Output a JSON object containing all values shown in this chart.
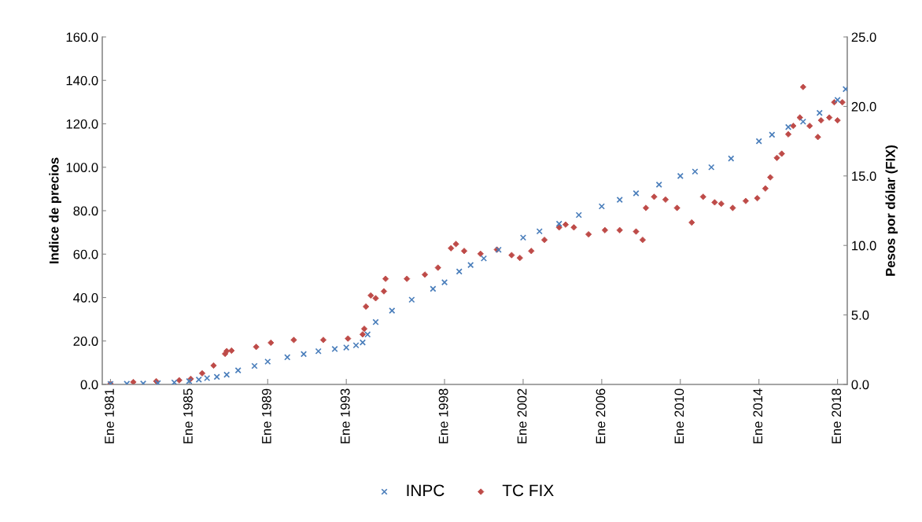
{
  "chart_data": {
    "type": "scatter",
    "ylabel": "Indice de precios",
    "y2label": "Pesos por dólar (FIX)",
    "xlim": [
      "1980-08",
      "2018-07"
    ],
    "xticks": [
      {
        "value": "1981-01",
        "label": "Ene 1981"
      },
      {
        "value": "1985-01",
        "label": "Ene 1985"
      },
      {
        "value": "1989-01",
        "label": "Ene 1989"
      },
      {
        "value": "1993-01",
        "label": "Ene 1993"
      },
      {
        "value": "1998-01",
        "label": "Ene 1998"
      },
      {
        "value": "2002-01",
        "label": "Ene 2002"
      },
      {
        "value": "2006-01",
        "label": "Ene 2006"
      },
      {
        "value": "2010-01",
        "label": "Ene 2010"
      },
      {
        "value": "2014-01",
        "label": "Ene 2014"
      },
      {
        "value": "2018-01",
        "label": "Ene 2018"
      }
    ],
    "ylim": [
      0,
      160
    ],
    "yticks": [
      {
        "value": 0,
        "label": "0.0"
      },
      {
        "value": 20,
        "label": "20.0"
      },
      {
        "value": 40,
        "label": "40.0"
      },
      {
        "value": 60,
        "label": "60.0"
      },
      {
        "value": 80,
        "label": "80.0"
      },
      {
        "value": 100,
        "label": "100.0"
      },
      {
        "value": 120,
        "label": "120.0"
      },
      {
        "value": 140,
        "label": "140.0"
      },
      {
        "value": 160,
        "label": "160.0"
      }
    ],
    "y2lim": [
      0,
      25
    ],
    "y2ticks": [
      {
        "value": 0,
        "label": "0.0"
      },
      {
        "value": 5,
        "label": "5.0"
      },
      {
        "value": 10,
        "label": "10.0"
      },
      {
        "value": 15,
        "label": "15.0"
      },
      {
        "value": 20,
        "label": "20.0"
      },
      {
        "value": 25,
        "label": "25.0"
      }
    ],
    "grid": false,
    "legend": "bottom",
    "series": [
      {
        "name": "INPC",
        "color": "#4a7ebb",
        "marker": "cross",
        "x": [
          "1981-01",
          "1981-11",
          "1982-09",
          "1983-06",
          "1984-04",
          "1985-01",
          "1985-07",
          "1985-12",
          "1986-06",
          "1986-12",
          "1987-07",
          "1988-05",
          "1989-01",
          "1990-01",
          "1990-11",
          "1991-08",
          "1992-06",
          "1993-01",
          "1993-07",
          "1993-11",
          "1994-02",
          "1994-07",
          "1995-05",
          "1996-05",
          "1997-06",
          "1998-01",
          "1998-10",
          "1999-05",
          "2000-01",
          "2000-10",
          "2002-01",
          "2002-11",
          "2003-11",
          "2004-11",
          "2006-01",
          "2006-12",
          "2007-10",
          "2008-12",
          "2010-01",
          "2010-10",
          "2011-08",
          "2012-08",
          "2014-01",
          "2014-09",
          "2015-07",
          "2016-04",
          "2017-02",
          "2018-01",
          "2018-06"
        ],
        "values": [
          0.2,
          0.3,
          0.4,
          0.6,
          0.9,
          1.5,
          2.2,
          2.9,
          3.5,
          4.5,
          6.5,
          8.5,
          10.5,
          12.5,
          14,
          15.3,
          16.3,
          17,
          18,
          19.3,
          23,
          28.7,
          34,
          39,
          44,
          47,
          52,
          55,
          58,
          62,
          67.6,
          70.5,
          74,
          78,
          82,
          85,
          88,
          92,
          96,
          98,
          100,
          104,
          112,
          115,
          118.5,
          121,
          125,
          131,
          136
        ]
      },
      {
        "name": "TC FIX",
        "color": "#be4b48",
        "marker": "diamond",
        "axis": "y2",
        "x": [
          "1981-01",
          "1982-03",
          "1983-05",
          "1984-07",
          "1985-02",
          "1985-09",
          "1986-04",
          "1986-11",
          "1986-12",
          "1987-03",
          "1988-06",
          "1989-03",
          "1990-05",
          "1991-11",
          "1993-02",
          "1993-11",
          "1993-12",
          "1994-01",
          "1994-04",
          "1994-07",
          "1994-12",
          "1995-01",
          "1996-02",
          "1997-01",
          "1997-09",
          "1998-05",
          "1998-08",
          "1999-01",
          "1999-11",
          "2000-09",
          "2001-06",
          "2001-11",
          "2002-06",
          "2003-02",
          "2003-11",
          "2004-03",
          "2004-08",
          "2005-05",
          "2006-03",
          "2006-12",
          "2007-10",
          "2008-02",
          "2008-04",
          "2008-09",
          "2009-04",
          "2009-11",
          "2010-08",
          "2011-03",
          "2011-10",
          "2012-02",
          "2012-09",
          "2013-05",
          "2013-12",
          "2014-05",
          "2014-08",
          "2014-12",
          "2015-03",
          "2015-07",
          "2015-10",
          "2016-02",
          "2016-04",
          "2016-08",
          "2017-01",
          "2017-03",
          "2017-08",
          "2017-11",
          "2018-01",
          "2018-04"
        ],
        "values": [
          0.05,
          0.17,
          0.23,
          0.3,
          0.4,
          0.8,
          1.36,
          2.2,
          2.4,
          2.43,
          2.7,
          3.0,
          3.2,
          3.2,
          3.3,
          3.6,
          4.0,
          5.6,
          6.4,
          6.2,
          6.7,
          7.6,
          7.6,
          7.9,
          8.4,
          9.8,
          10.1,
          9.6,
          9.4,
          9.7,
          9.3,
          9.1,
          9.6,
          10.4,
          11.3,
          11.5,
          11.3,
          10.8,
          11.1,
          11.1,
          11.0,
          10.4,
          12.7,
          13.5,
          13.3,
          12.7,
          11.65,
          13.5,
          13.1,
          13.0,
          12.7,
          13.2,
          13.4,
          14.1,
          14.9,
          16.3,
          16.6,
          18.0,
          18.6,
          19.2,
          21.4,
          18.6,
          17.8,
          19.0,
          19.2,
          20.3,
          19.0,
          20.3
        ]
      }
    ]
  }
}
